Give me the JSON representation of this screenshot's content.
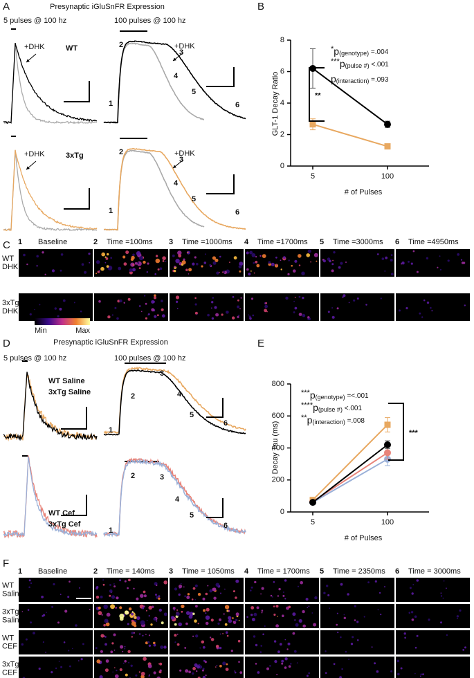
{
  "panel_a": {
    "letter": "A",
    "title": "Presynaptic iGluSnFR Expression",
    "left_label": "5 pulses @ 100 hz",
    "right_label": "100 pulses @ 100 hz",
    "rows": [
      {
        "genotype": "WT",
        "drug_left": "+DHK",
        "drug_right": "+DHK"
      },
      {
        "genotype": "3xTg",
        "drug_left": "+DHK",
        "drug_right": "+DHK"
      }
    ],
    "markers": [
      "1",
      "2",
      "3",
      "4",
      "5",
      "6"
    ]
  },
  "chart_data": [
    {
      "panel": "B",
      "type": "line",
      "categories": [
        "5",
        "100"
      ],
      "xlabel": "# of Pulses",
      "ylabel": "GLT-1 Decay Ratio",
      "ylim": [
        0,
        8
      ],
      "yticks": [
        0,
        2,
        4,
        6,
        8
      ],
      "series": [
        {
          "color": "#000000",
          "marker": "circle",
          "values": [
            6.2,
            2.65
          ],
          "errors": [
            1.25,
            0.2
          ]
        },
        {
          "color": "#e8a860",
          "marker": "square",
          "values": [
            2.65,
            1.25
          ],
          "errors": [
            0.35,
            0.1
          ]
        }
      ],
      "stats": [
        {
          "stars": "*",
          "p": "p",
          "sub": "(genotype)",
          "value": " =.004"
        },
        {
          "stars": "***",
          "p": "p",
          "sub": "(pulse #)",
          "value": " <.001"
        },
        {
          "stars": "",
          "p": "p",
          "sub": "(interaction)",
          "value": " =.093"
        }
      ],
      "significance": "**"
    },
    {
      "panel": "E",
      "type": "line",
      "categories": [
        "5",
        "100"
      ],
      "xlabel": "# of Pulses",
      "ylabel": "Decay Tau (ms)",
      "ylim": [
        0,
        800
      ],
      "yticks": [
        0,
        200,
        400,
        600,
        800
      ],
      "series": [
        {
          "color": "#9ab0d8",
          "marker": "circle",
          "values": [
            60,
            330
          ],
          "errors": [
            8,
            40
          ]
        },
        {
          "color": "#e8847a",
          "marker": "circle",
          "values": [
            65,
            370
          ],
          "errors": [
            8,
            40
          ]
        },
        {
          "color": "#e8a860",
          "marker": "square",
          "values": [
            75,
            545
          ],
          "errors": [
            10,
            45
          ]
        },
        {
          "color": "#000000",
          "marker": "circle",
          "values": [
            60,
            420
          ],
          "errors": [
            8,
            25
          ]
        }
      ],
      "stats": [
        {
          "stars": "***",
          "p": "p",
          "sub": "(genotype)",
          "value": " =<.001"
        },
        {
          "stars": "****",
          "p": "p",
          "sub": "(pulse #)",
          "value": " <.001"
        },
        {
          "stars": "**",
          "p": "p",
          "sub": "(interaction)",
          "value": " =.008"
        }
      ],
      "significance": "***"
    }
  ],
  "panel_c": {
    "letter": "C",
    "timepoints": [
      {
        "n": "1",
        "label": "Baseline"
      },
      {
        "n": "2",
        "label": "Time =100ms"
      },
      {
        "n": "3",
        "label": "Time =1000ms"
      },
      {
        "n": "4",
        "label": "Time =1700ms"
      },
      {
        "n": "5",
        "label": "Time =3000ms"
      },
      {
        "n": "6",
        "label": "Time =4950ms"
      }
    ],
    "rows": [
      [
        "WT",
        "DHK"
      ],
      [
        "3xTg",
        "DHK"
      ]
    ],
    "colorbar": {
      "min": "Min",
      "max": "Max"
    }
  },
  "panel_d": {
    "letter": "D",
    "title": "Presynaptic iGluSnFR Expression",
    "left_label": "5 pulses @ 100 hz",
    "right_label": "100 pulses @ 100 hz",
    "legend_top": [
      "WT Saline",
      "3xTg Saline"
    ],
    "legend_bottom": [
      "WT Cef",
      "3xTg Cef"
    ],
    "markers": [
      "1",
      "2",
      "3",
      "4",
      "5",
      "6"
    ]
  },
  "panel_f": {
    "letter": "F",
    "timepoints": [
      {
        "n": "1",
        "label": "Baseline"
      },
      {
        "n": "2",
        "label": "Time = 140ms"
      },
      {
        "n": "3",
        "label": "Time = 1050ms"
      },
      {
        "n": "4",
        "label": "Time = 1700ms"
      },
      {
        "n": "5",
        "label": "Time = 2350ms"
      },
      {
        "n": "6",
        "label": "Time = 3000ms"
      }
    ],
    "rows": [
      [
        "WT",
        "Saline"
      ],
      [
        "3xTg",
        "Saline"
      ],
      [
        "WT",
        "CEF"
      ],
      [
        "3xTg",
        "CEF"
      ]
    ]
  }
}
